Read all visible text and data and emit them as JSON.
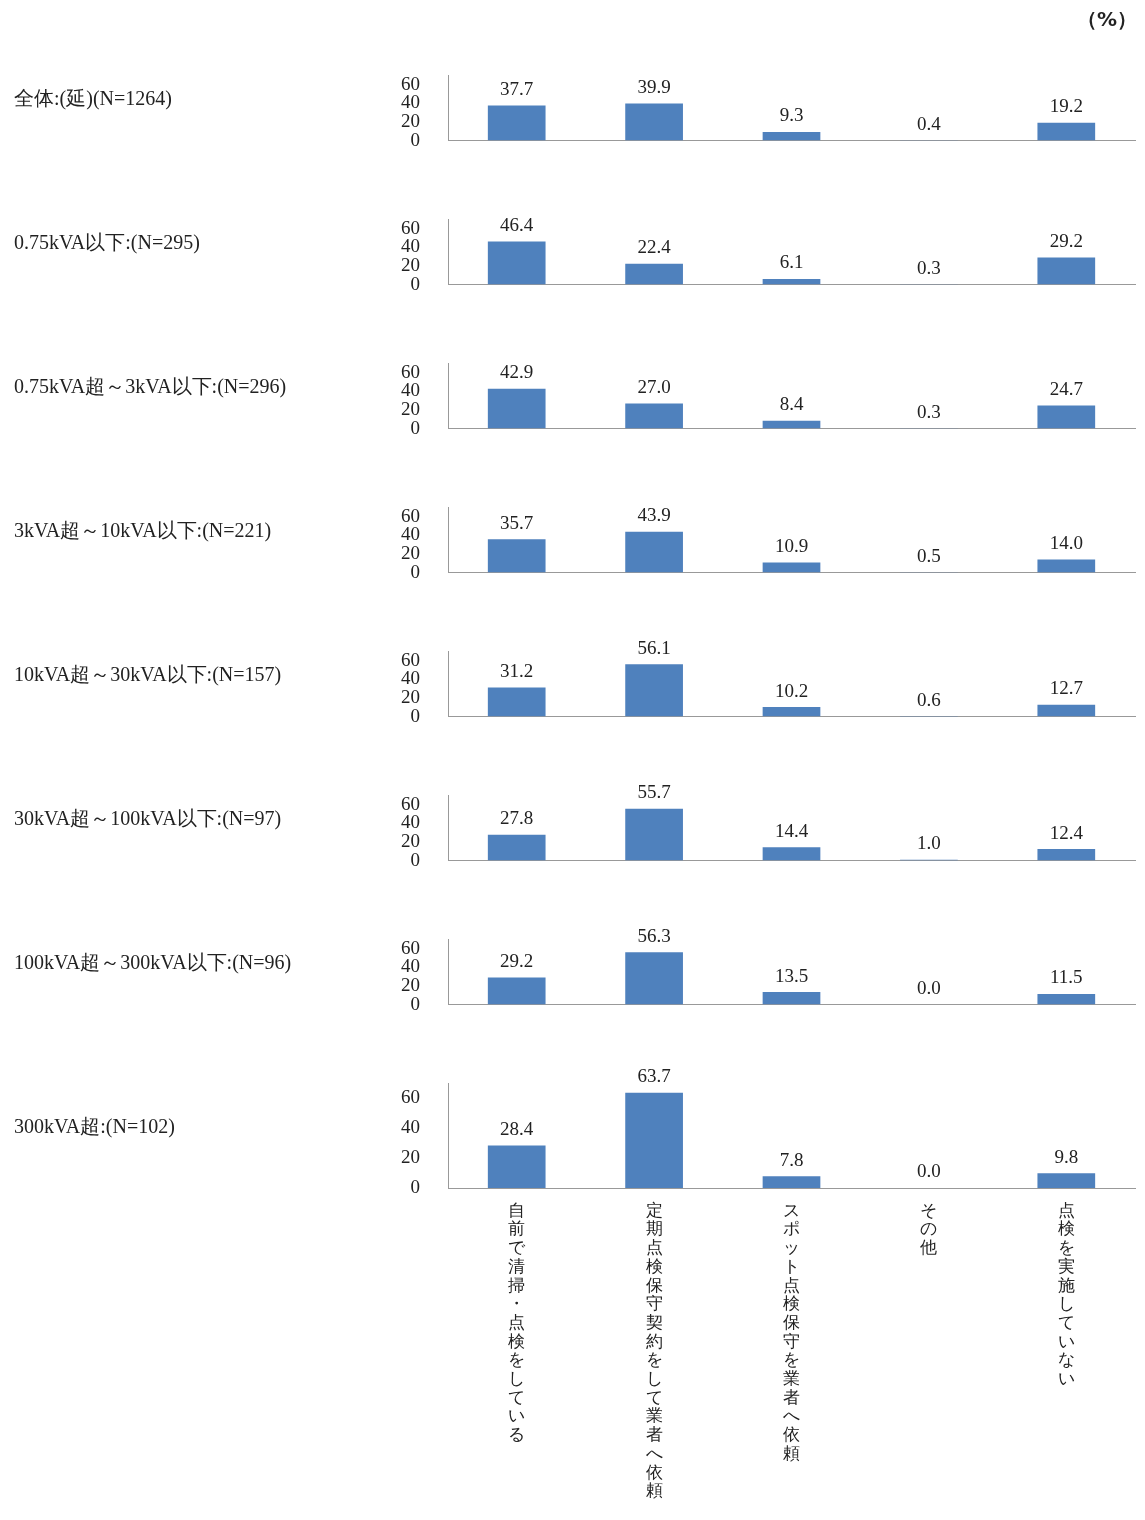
{
  "chart_data": [
    {
      "type": "bar",
      "ylabel": "全体:(延)(N=1264)",
      "categories": [
        null,
        null,
        null,
        null,
        null
      ],
      "values": [
        37.7,
        39.9,
        9.3,
        0.4,
        19.2
      ],
      "value_labels": [
        "37.7",
        "39.9",
        "9.3",
        "0.4",
        "19.2"
      ],
      "color": "#4f81bd",
      "ylim": [
        0,
        70
      ],
      "yticks": [
        0,
        20,
        40,
        60
      ],
      "tick_labels": "y",
      "annotations": [
        "（%）"
      ]
    },
    {
      "type": "bar",
      "ylabel": "0.75kVA以下:(N=295)",
      "categories": [
        null,
        null,
        null,
        null,
        null
      ],
      "values": [
        46.4,
        22.4,
        6.1,
        0.3,
        29.2
      ],
      "value_labels": [
        "46.4",
        "22.4",
        "6.1",
        "0.3",
        "29.2"
      ],
      "color": "#4f81bd",
      "ylim": [
        0,
        70
      ],
      "yticks": [
        0,
        20,
        40,
        60
      ],
      "tick_labels": "y"
    },
    {
      "type": "bar",
      "ylabel": "0.75kVA超～3kVA以下:(N=296)",
      "categories": [
        null,
        null,
        null,
        null,
        null
      ],
      "values": [
        42.9,
        27.0,
        8.4,
        0.3,
        24.7
      ],
      "value_labels": [
        "42.9",
        "27.0",
        "8.4",
        "0.3",
        "24.7"
      ],
      "color": "#4f81bd",
      "ylim": [
        0,
        70
      ],
      "yticks": [
        0,
        20,
        40,
        60
      ],
      "tick_labels": "y"
    },
    {
      "type": "bar",
      "ylabel": "3kVA超～10kVA以下:(N=221)",
      "categories": [
        null,
        null,
        null,
        null,
        null
      ],
      "values": [
        35.7,
        43.9,
        10.9,
        0.5,
        14.0
      ],
      "value_labels": [
        "35.7",
        "43.9",
        "10.9",
        "0.5",
        "14.0"
      ],
      "color": "#4f81bd",
      "ylim": [
        0,
        70
      ],
      "yticks": [
        0,
        20,
        40,
        60
      ],
      "tick_labels": "y"
    },
    {
      "type": "bar",
      "ylabel": "10kVA超～30kVA以下:(N=157)",
      "categories": [
        null,
        null,
        null,
        null,
        null
      ],
      "values": [
        31.2,
        56.1,
        10.2,
        0.6,
        12.7
      ],
      "value_labels": [
        "31.2",
        "56.1",
        "10.2",
        "0.6",
        "12.7"
      ],
      "color": "#4f81bd",
      "ylim": [
        0,
        70
      ],
      "yticks": [
        0,
        20,
        40,
        60
      ],
      "tick_labels": "y"
    },
    {
      "type": "bar",
      "ylabel": "30kVA超～100kVA以下:(N=97)",
      "categories": [
        null,
        null,
        null,
        null,
        null
      ],
      "values": [
        27.8,
        55.7,
        14.4,
        1.0,
        12.4
      ],
      "value_labels": [
        "27.8",
        "55.7",
        "14.4",
        "1.0",
        "12.4"
      ],
      "color": "#4f81bd",
      "ylim": [
        0,
        70
      ],
      "yticks": [
        0,
        20,
        40,
        60
      ],
      "tick_labels": "y"
    },
    {
      "type": "bar",
      "ylabel": "100kVA超～300kVA以下:(N=96)",
      "categories": [
        null,
        null,
        null,
        null,
        null
      ],
      "values": [
        29.2,
        56.3,
        13.5,
        0.0,
        11.5
      ],
      "value_labels": [
        "29.2",
        "56.3",
        "13.5",
        "0.0",
        "11.5"
      ],
      "color": "#4f81bd",
      "ylim": [
        0,
        70
      ],
      "yticks": [
        0,
        20,
        40,
        60
      ],
      "tick_labels": "y"
    },
    {
      "type": "bar",
      "ylabel": "300kVA超:(N=102)",
      "categories": [
        "自前で清掃・点検をしている",
        "定期点検保守契約をして業者へ依頼",
        "スポット点検保守を業者へ依頼",
        "その他",
        "点検を実施していない"
      ],
      "values": [
        28.4,
        63.7,
        7.8,
        0.0,
        9.8
      ],
      "value_labels": [
        "28.4",
        "63.7",
        "7.8",
        "0.0",
        "9.8"
      ],
      "color": "#4f81bd",
      "ylim": [
        0,
        70
      ],
      "yticks": [
        0,
        20,
        40,
        60
      ]
    }
  ]
}
